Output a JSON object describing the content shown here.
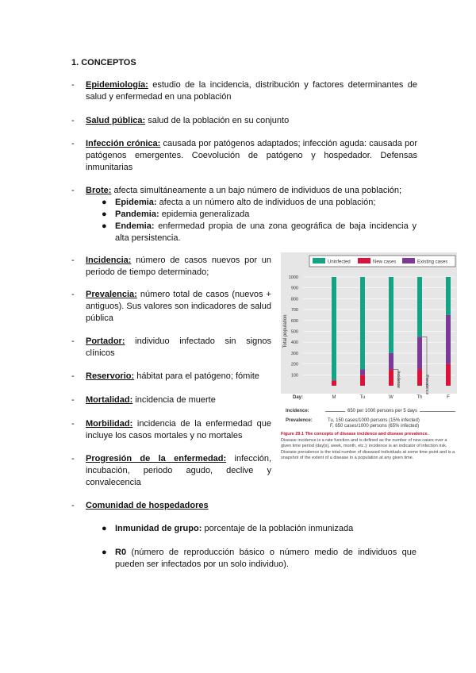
{
  "heading": "1.  CONCEPTOS",
  "items": [
    {
      "term": "Epidemiología:",
      "text": " estudio de la incidencia, distribución y factores determinantes de salud y enfermedad en una población"
    },
    {
      "term": "Salud pública:",
      "text": " salud de la población en su conjunto"
    },
    {
      "term": "Infección crónica:",
      "text": " causada por patógenos adaptados; infección aguda: causada por patógenos emergentes. Coevolución de patógeno y hospedador. Defensas inmunitarias"
    },
    {
      "term": "Brote:",
      "text": " afecta simultáneamente a un bajo número de individuos de una población;"
    },
    {
      "term": "Incidencia:",
      "text": " número de casos nuevos por un periodo de tiempo determinado;"
    },
    {
      "term": "Prevalencia:",
      "text": " número total de casos (nuevos + antiguos). Sus valores son indicadores de salud pública"
    },
    {
      "term": "Portador:",
      "text": " individuo infectado sin signos clínicos"
    },
    {
      "term": "Reservorio:",
      "text": " hábitat para el patógeno; fómite"
    },
    {
      "term": "Mortalidad:",
      "text": " incidencia de muerte"
    },
    {
      "term": "Morbilidad:",
      "text": " incidencia de la enfermedad que incluye los casos mortales y no mortales"
    },
    {
      "term": "Progresión de la enfermedad:",
      "text": " infección, incubación, periodo agudo, declive y convalecencia"
    },
    {
      "term": "Comunidad de hospedadores",
      "text": ""
    }
  ],
  "brote_bullets": [
    {
      "term": "Epidemia:",
      "text": " afecta a un número alto de individuos de una población;"
    },
    {
      "term": "Pandemia:",
      "text": " epidemia generalizada"
    },
    {
      "term": "Endemia:",
      "text": " enfermedad propia de una zona geográfica de baja incidencia y alta persistencia."
    }
  ],
  "comunidad_bullets": [
    {
      "term": "Inmunidad de grupo:",
      "text": " porcentaje de la población inmunizada"
    },
    {
      "term": "R0",
      "text": " (número de reproducción básico o número medio de individuos que pueden ser infectados por un solo individuo)."
    }
  ],
  "bullet": "●",
  "dash": "-",
  "figure": {
    "chart_data": {
      "type": "bar",
      "stacked": true,
      "categories": [
        "M",
        "Tu",
        "W",
        "Th",
        "F"
      ],
      "series": [
        {
          "name": "New cases",
          "values": [
            50,
            100,
            150,
            150,
            200
          ],
          "color": "#d8143a"
        },
        {
          "name": "Existing cases",
          "values": [
            0,
            50,
            150,
            300,
            450
          ],
          "color": "#7b3a96"
        },
        {
          "name": "Uninfected",
          "values": [
            950,
            850,
            700,
            550,
            350
          ],
          "color": "#14a384"
        }
      ],
      "legend_order": [
        "Uninfected",
        "New cases",
        "Existing cases"
      ],
      "ylabel": "Total population",
      "xlabel": "Day:",
      "yticks": [
        100,
        200,
        300,
        400,
        500,
        600,
        700,
        800,
        900,
        1000
      ],
      "ylim": [
        0,
        1000
      ],
      "grid": true,
      "legend": "top",
      "annotations": [
        "Incidence",
        "Prevalence"
      ]
    },
    "incidence_label": "Incidence:",
    "incidence_text": "650 per 1000 persons per 5 days",
    "prevalence_label": "Prevalence:",
    "prevalence_lines": [
      "Tu, 150 cases/1000 persons (15% infected)",
      "F, 650 cases/1000 persons (65% infected)"
    ],
    "caption_title": "Figure 29.1  The concepts of disease incidence and disease prevalence.",
    "caption_text": "Disease incidence is a rate function and is defined as the number of new cases over a given time period (day[s], week, month, etc.); incidence is an indicator of infection risk. Disease prevalence is the total number of diseased individuals at some time point and is a snapshot of the extent of a disease in a population at any given time."
  }
}
